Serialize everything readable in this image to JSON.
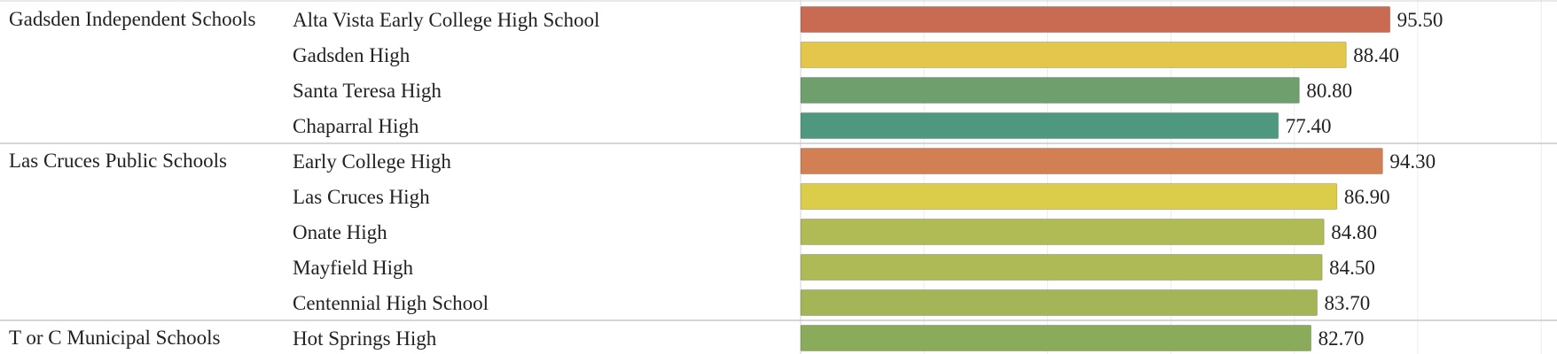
{
  "chart_data": {
    "type": "bar",
    "orientation": "horizontal",
    "xlim": [
      0,
      100
    ],
    "grid": true,
    "groups": [
      {
        "district": "Gadsden Independent Schools",
        "schools": [
          {
            "name": "Alta Vista Early College High School",
            "value": 95.5,
            "label": "95.50",
            "color": "#c96b52"
          },
          {
            "name": "Gadsden High",
            "value": 88.4,
            "label": "88.40",
            "color": "#e3c74a"
          },
          {
            "name": "Santa Teresa High",
            "value": 80.8,
            "label": "80.80",
            "color": "#6e9f6c"
          },
          {
            "name": "Chaparral High",
            "value": 77.4,
            "label": "77.40",
            "color": "#4f9880"
          }
        ]
      },
      {
        "district": "Las Cruces Public Schools",
        "schools": [
          {
            "name": "Early College High",
            "value": 94.3,
            "label": "94.30",
            "color": "#d27f53"
          },
          {
            "name": "Las Cruces High",
            "value": 86.9,
            "label": "86.90",
            "color": "#dbcd49"
          },
          {
            "name": "Onate High",
            "value": 84.8,
            "label": "84.80",
            "color": "#b1bb55"
          },
          {
            "name": "Mayfield High",
            "value": 84.5,
            "label": "84.50",
            "color": "#adba56"
          },
          {
            "name": "Centennial High School",
            "value": 83.7,
            "label": "83.70",
            "color": "#a3b557"
          }
        ]
      },
      {
        "district": "T or C Municipal Schools",
        "schools": [
          {
            "name": "Hot Springs High",
            "value": 82.7,
            "label": "82.70",
            "color": "#8aac5a"
          }
        ]
      }
    ]
  }
}
